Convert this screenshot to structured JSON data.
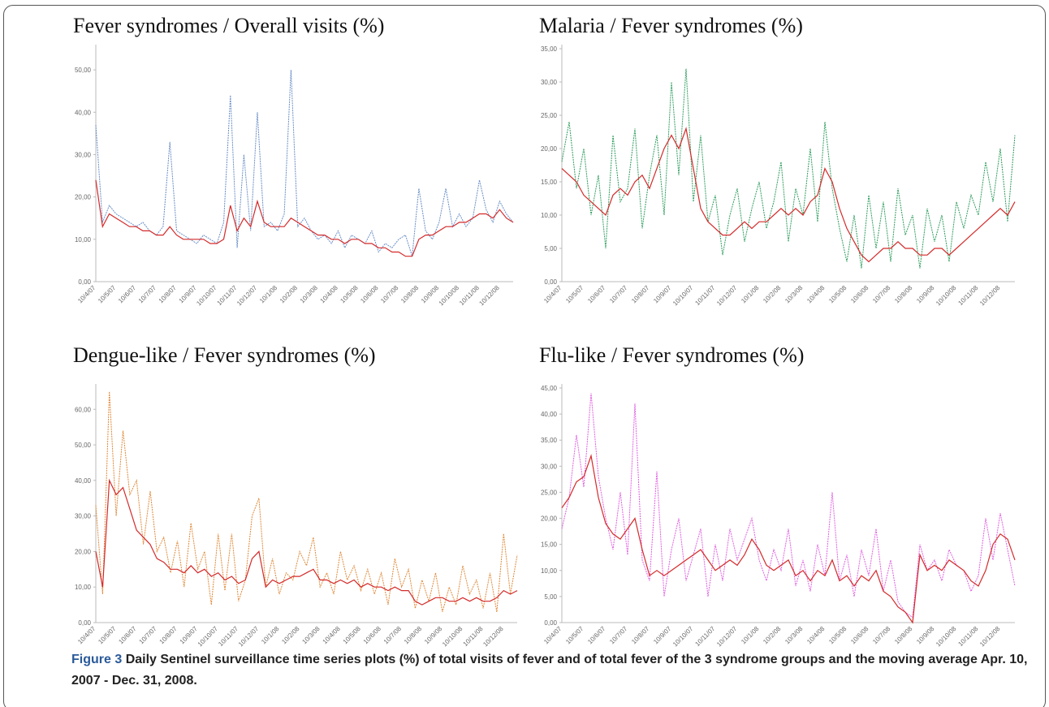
{
  "chart_data": [
    {
      "type": "line",
      "title": "Fever syndromes / Overall visits (%)",
      "categories": [
        "10/4/07",
        null,
        null,
        "10/5/07",
        null,
        null,
        "10/6/07",
        null,
        null,
        "10/7/07",
        null,
        null,
        "10/8/07",
        null,
        null,
        "10/9/07",
        null,
        null,
        "10/10/07",
        null,
        null,
        "10/11/07",
        null,
        null,
        "10/12/07",
        null,
        null,
        "10/1/08",
        null,
        null,
        "10/2/08",
        null,
        null,
        "10/3/08",
        null,
        null,
        "10/4/08",
        null,
        null,
        "10/5/08",
        null,
        null,
        "10/6/08",
        null,
        null,
        "10/7/08",
        null,
        null,
        "10/8/08",
        null,
        null,
        "10/9/08",
        null,
        null,
        "10/10/08",
        null,
        null,
        "10/11/08",
        null,
        null,
        "10/12/08",
        null,
        null
      ],
      "series": [
        {
          "color": "#6a8fc8",
          "values": [
            37,
            14,
            18,
            16,
            15,
            14,
            13,
            14,
            12,
            11,
            13,
            33,
            12,
            11,
            10,
            9,
            11,
            10,
            9,
            14,
            44,
            8,
            30,
            12,
            40,
            13,
            14,
            12,
            16,
            50,
            13,
            15,
            12,
            10,
            11,
            9,
            12,
            8,
            11,
            10,
            9,
            12,
            7,
            9,
            8,
            10,
            11,
            6,
            22,
            12,
            10,
            14,
            22,
            13,
            16,
            13,
            15,
            24,
            17,
            14,
            19,
            16,
            14
          ]
        },
        {
          "color": "#d42a2a",
          "values": [
            24,
            13,
            16,
            15,
            14,
            13,
            13,
            12,
            12,
            11,
            11,
            13,
            11,
            10,
            10,
            10,
            10,
            9,
            9,
            10,
            18,
            12,
            15,
            13,
            19,
            14,
            13,
            13,
            13,
            15,
            14,
            13,
            12,
            11,
            11,
            10,
            10,
            9,
            10,
            10,
            9,
            9,
            8,
            8,
            7,
            7,
            6,
            6,
            10,
            11,
            11,
            12,
            13,
            13,
            14,
            14,
            15,
            16,
            16,
            15,
            17,
            15,
            14
          ]
        }
      ],
      "ylim": [
        0,
        55
      ],
      "yticks": [
        {
          "value": 0,
          "label": "0,00"
        },
        {
          "value": 10,
          "label": "10,00"
        },
        {
          "value": 20,
          "label": "20,00"
        },
        {
          "value": 30,
          "label": "30,00"
        },
        {
          "value": 40,
          "label": "40,00"
        },
        {
          "value": 50,
          "label": "50,00"
        }
      ]
    },
    {
      "type": "line",
      "title": "Malaria / Fever syndromes (%)",
      "categories": [
        "10/4/07",
        null,
        null,
        "10/5/07",
        null,
        null,
        "10/6/07",
        null,
        null,
        "10/7/07",
        null,
        null,
        "10/8/07",
        null,
        null,
        "10/9/07",
        null,
        null,
        "10/10/07",
        null,
        null,
        "10/11/07",
        null,
        null,
        "10/12/07",
        null,
        null,
        "10/1/08",
        null,
        null,
        "10/2/08",
        null,
        null,
        "10/3/08",
        null,
        null,
        "10/4/08",
        null,
        null,
        "10/5/08",
        null,
        null,
        "10/6/08",
        null,
        null,
        "10/7/08",
        null,
        null,
        "10/8/08",
        null,
        null,
        "10/9/08",
        null,
        null,
        "10/10/08",
        null,
        null,
        "10/11/08",
        null,
        null,
        "10/12/08",
        null,
        null
      ],
      "series": [
        {
          "color": "#2e9e5e",
          "values": [
            18,
            24,
            14,
            20,
            10,
            16,
            5,
            22,
            12,
            14,
            23,
            8,
            16,
            22,
            10,
            30,
            16,
            32,
            12,
            22,
            9,
            13,
            4,
            10,
            14,
            6,
            11,
            15,
            8,
            12,
            18,
            6,
            14,
            10,
            20,
            9,
            24,
            14,
            8,
            3,
            10,
            2,
            13,
            5,
            12,
            3,
            14,
            7,
            10,
            2,
            11,
            6,
            10,
            3,
            12,
            8,
            13,
            10,
            18,
            12,
            20,
            9,
            22
          ]
        },
        {
          "color": "#d42a2a",
          "values": [
            17,
            16,
            15,
            13,
            12,
            11,
            10,
            13,
            14,
            13,
            15,
            16,
            14,
            17,
            20,
            22,
            20,
            23,
            17,
            11,
            9,
            8,
            7,
            7,
            8,
            9,
            8,
            9,
            9,
            10,
            11,
            10,
            11,
            10,
            12,
            13,
            17,
            15,
            11,
            8,
            6,
            4,
            3,
            4,
            5,
            5,
            6,
            5,
            5,
            4,
            4,
            5,
            5,
            4,
            5,
            6,
            7,
            8,
            9,
            10,
            11,
            10,
            12
          ]
        }
      ],
      "ylim": [
        0,
        35
      ],
      "yticks": [
        {
          "value": 0,
          "label": "0,00"
        },
        {
          "value": 5,
          "label": "5,00"
        },
        {
          "value": 10,
          "label": "10,00"
        },
        {
          "value": 15,
          "label": "15,00"
        },
        {
          "value": 20,
          "label": "20,00"
        },
        {
          "value": 25,
          "label": "25,00"
        },
        {
          "value": 30,
          "label": "30,00"
        },
        {
          "value": 35,
          "label": "35,00"
        }
      ]
    },
    {
      "type": "line",
      "title": "Dengue-like / Fever syndromes (%)",
      "categories": [
        "10/4/07",
        null,
        null,
        "10/5/07",
        null,
        null,
        "10/6/07",
        null,
        null,
        "10/7/07",
        null,
        null,
        "10/8/07",
        null,
        null,
        "10/9/07",
        null,
        null,
        "10/10/07",
        null,
        null,
        "10/11/07",
        null,
        null,
        "10/12/07",
        null,
        null,
        "10/1/08",
        null,
        null,
        "10/2/08",
        null,
        null,
        "10/3/08",
        null,
        null,
        "10/4/08",
        null,
        null,
        "10/5/08",
        null,
        null,
        "10/6/08",
        null,
        null,
        "10/7/08",
        null,
        null,
        "10/8/08",
        null,
        null,
        "10/9/08",
        null,
        null,
        "10/10/08",
        null,
        null,
        "10/11/08",
        null,
        null,
        "10/12/08",
        null,
        null
      ],
      "series": [
        {
          "color": "#e08a3a",
          "values": [
            33,
            8,
            65,
            30,
            54,
            36,
            40,
            22,
            37,
            20,
            24,
            14,
            23,
            10,
            28,
            15,
            20,
            5,
            25,
            9,
            25,
            6,
            12,
            30,
            35,
            10,
            18,
            8,
            14,
            12,
            20,
            16,
            24,
            10,
            14,
            8,
            20,
            12,
            16,
            9,
            15,
            8,
            14,
            5,
            18,
            10,
            15,
            4,
            12,
            6,
            14,
            3,
            10,
            5,
            16,
            8,
            12,
            4,
            14,
            3,
            25,
            8,
            19
          ]
        },
        {
          "color": "#d42a2a",
          "values": [
            20,
            10,
            40,
            36,
            38,
            32,
            26,
            24,
            22,
            18,
            17,
            15,
            15,
            14,
            16,
            14,
            15,
            13,
            14,
            12,
            13,
            11,
            12,
            18,
            20,
            10,
            12,
            11,
            12,
            13,
            13,
            14,
            15,
            12,
            12,
            11,
            12,
            11,
            12,
            10,
            11,
            10,
            10,
            9,
            10,
            9,
            9,
            6,
            5,
            6,
            7,
            7,
            6,
            6,
            7,
            6,
            7,
            6,
            6,
            7,
            9,
            8,
            9
          ]
        }
      ],
      "ylim": [
        0,
        66
      ],
      "yticks": [
        {
          "value": 0,
          "label": "0,00"
        },
        {
          "value": 10,
          "label": "10,00"
        },
        {
          "value": 20,
          "label": "20,00"
        },
        {
          "value": 30,
          "label": "30,00"
        },
        {
          "value": 40,
          "label": "40,00"
        },
        {
          "value": 50,
          "label": "50,00"
        },
        {
          "value": 60,
          "label": "60,00"
        }
      ]
    },
    {
      "type": "line",
      "title": "Flu-like / Fever syndromes (%)",
      "categories": [
        "10/4/07",
        null,
        null,
        "10/5/07",
        null,
        null,
        "10/6/07",
        null,
        null,
        "10/7/07",
        null,
        null,
        "10/8/07",
        null,
        null,
        "10/9/07",
        null,
        null,
        "10/10/07",
        null,
        null,
        "10/11/07",
        null,
        null,
        "10/12/07",
        null,
        null,
        "10/1/08",
        null,
        null,
        "10/2/08",
        null,
        null,
        "10/3/08",
        null,
        null,
        "10/4/08",
        null,
        null,
        "10/5/08",
        null,
        null,
        "10/6/08",
        null,
        null,
        "10/7/08",
        null,
        null,
        "10/8/08",
        null,
        null,
        "10/9/08",
        null,
        null,
        "10/10/08",
        null,
        null,
        "10/11/08",
        null,
        null,
        "10/12/08",
        null,
        null
      ],
      "series": [
        {
          "color": "#e060e0",
          "values": [
            18,
            24,
            36,
            26,
            44,
            28,
            20,
            14,
            25,
            13,
            42,
            12,
            8,
            29,
            5,
            14,
            20,
            8,
            13,
            18,
            5,
            15,
            8,
            18,
            12,
            16,
            20,
            12,
            8,
            14,
            10,
            18,
            7,
            12,
            6,
            15,
            9,
            25,
            8,
            13,
            5,
            14,
            9,
            18,
            6,
            12,
            4,
            2,
            1,
            15,
            10,
            12,
            8,
            14,
            11,
            10,
            6,
            9,
            20,
            12,
            21,
            14,
            7
          ]
        },
        {
          "color": "#d42a2a",
          "values": [
            22,
            24,
            27,
            28,
            32,
            24,
            19,
            17,
            16,
            18,
            20,
            14,
            9,
            10,
            9,
            10,
            11,
            12,
            13,
            14,
            12,
            10,
            11,
            12,
            11,
            13,
            16,
            14,
            11,
            10,
            11,
            12,
            9,
            10,
            8,
            10,
            9,
            12,
            8,
            9,
            7,
            9,
            8,
            10,
            6,
            5,
            3,
            2,
            0,
            13,
            10,
            11,
            10,
            12,
            11,
            10,
            8,
            7,
            10,
            15,
            17,
            16,
            12
          ]
        }
      ],
      "ylim": [
        0,
        45
      ],
      "yticks": [
        {
          "value": 0,
          "label": "0,00"
        },
        {
          "value": 5,
          "label": "5,00"
        },
        {
          "value": 10,
          "label": "10,00"
        },
        {
          "value": 15,
          "label": "15,00"
        },
        {
          "value": 20,
          "label": "20,00"
        },
        {
          "value": 25,
          "label": "25,00"
        },
        {
          "value": 30,
          "label": "30,00"
        },
        {
          "value": 35,
          "label": "35,00"
        },
        {
          "value": 40,
          "label": "40,00"
        },
        {
          "value": 45,
          "label": "45,00"
        }
      ]
    }
  ],
  "caption": {
    "label": "Figure 3",
    "text": "Daily Sentinel surveillance time series plots (%) of total visits of fever and of total fever of the 3 syndrome groups and the moving average Apr. 10, 2007 - Dec. 31, 2008."
  }
}
